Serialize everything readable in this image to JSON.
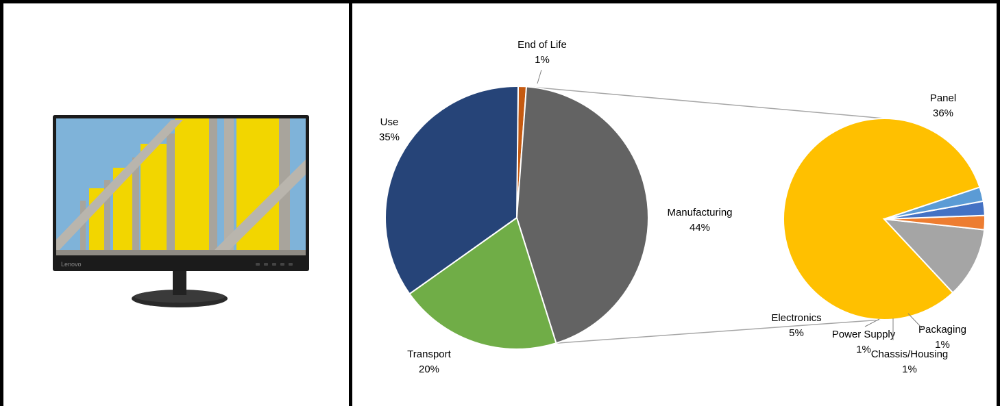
{
  "monitor": {
    "brand": "Lenovo",
    "colors": {
      "bezel": "#1b1b1b",
      "sky": "#7fb3d9",
      "yellow": "#f2d600",
      "concrete": "#a8a49c",
      "stand": "#2a2a2a"
    },
    "image_name": "lenovo-monitor-product-image"
  },
  "chart_data": [
    {
      "type": "pie",
      "role": "primary",
      "categories": [
        "End of Life",
        "Manufacturing",
        "Transport",
        "Use"
      ],
      "values": [
        1,
        44,
        20,
        35
      ],
      "labels": [
        "1%",
        "44%",
        "20%",
        "35%"
      ],
      "colors": [
        "#c55a11",
        "#636363",
        "#70ad47",
        "#264478"
      ],
      "title": "",
      "legend": "none (inline data labels)"
    },
    {
      "type": "pie",
      "role": "breakdown-of-manufacturing",
      "categories": [
        "Panel",
        "Electronics",
        "Power Supply",
        "Chassis/Housing",
        "Packaging"
      ],
      "values": [
        36,
        5,
        1,
        1,
        1
      ],
      "labels": [
        "36%",
        "5%",
        "1%",
        "1%",
        "1%"
      ],
      "colors": [
        "#ffc000",
        "#a5a5a5",
        "#ed7d31",
        "#4472c4",
        "#5b9bd5"
      ],
      "title": "",
      "legend": "none (inline data labels)"
    }
  ]
}
